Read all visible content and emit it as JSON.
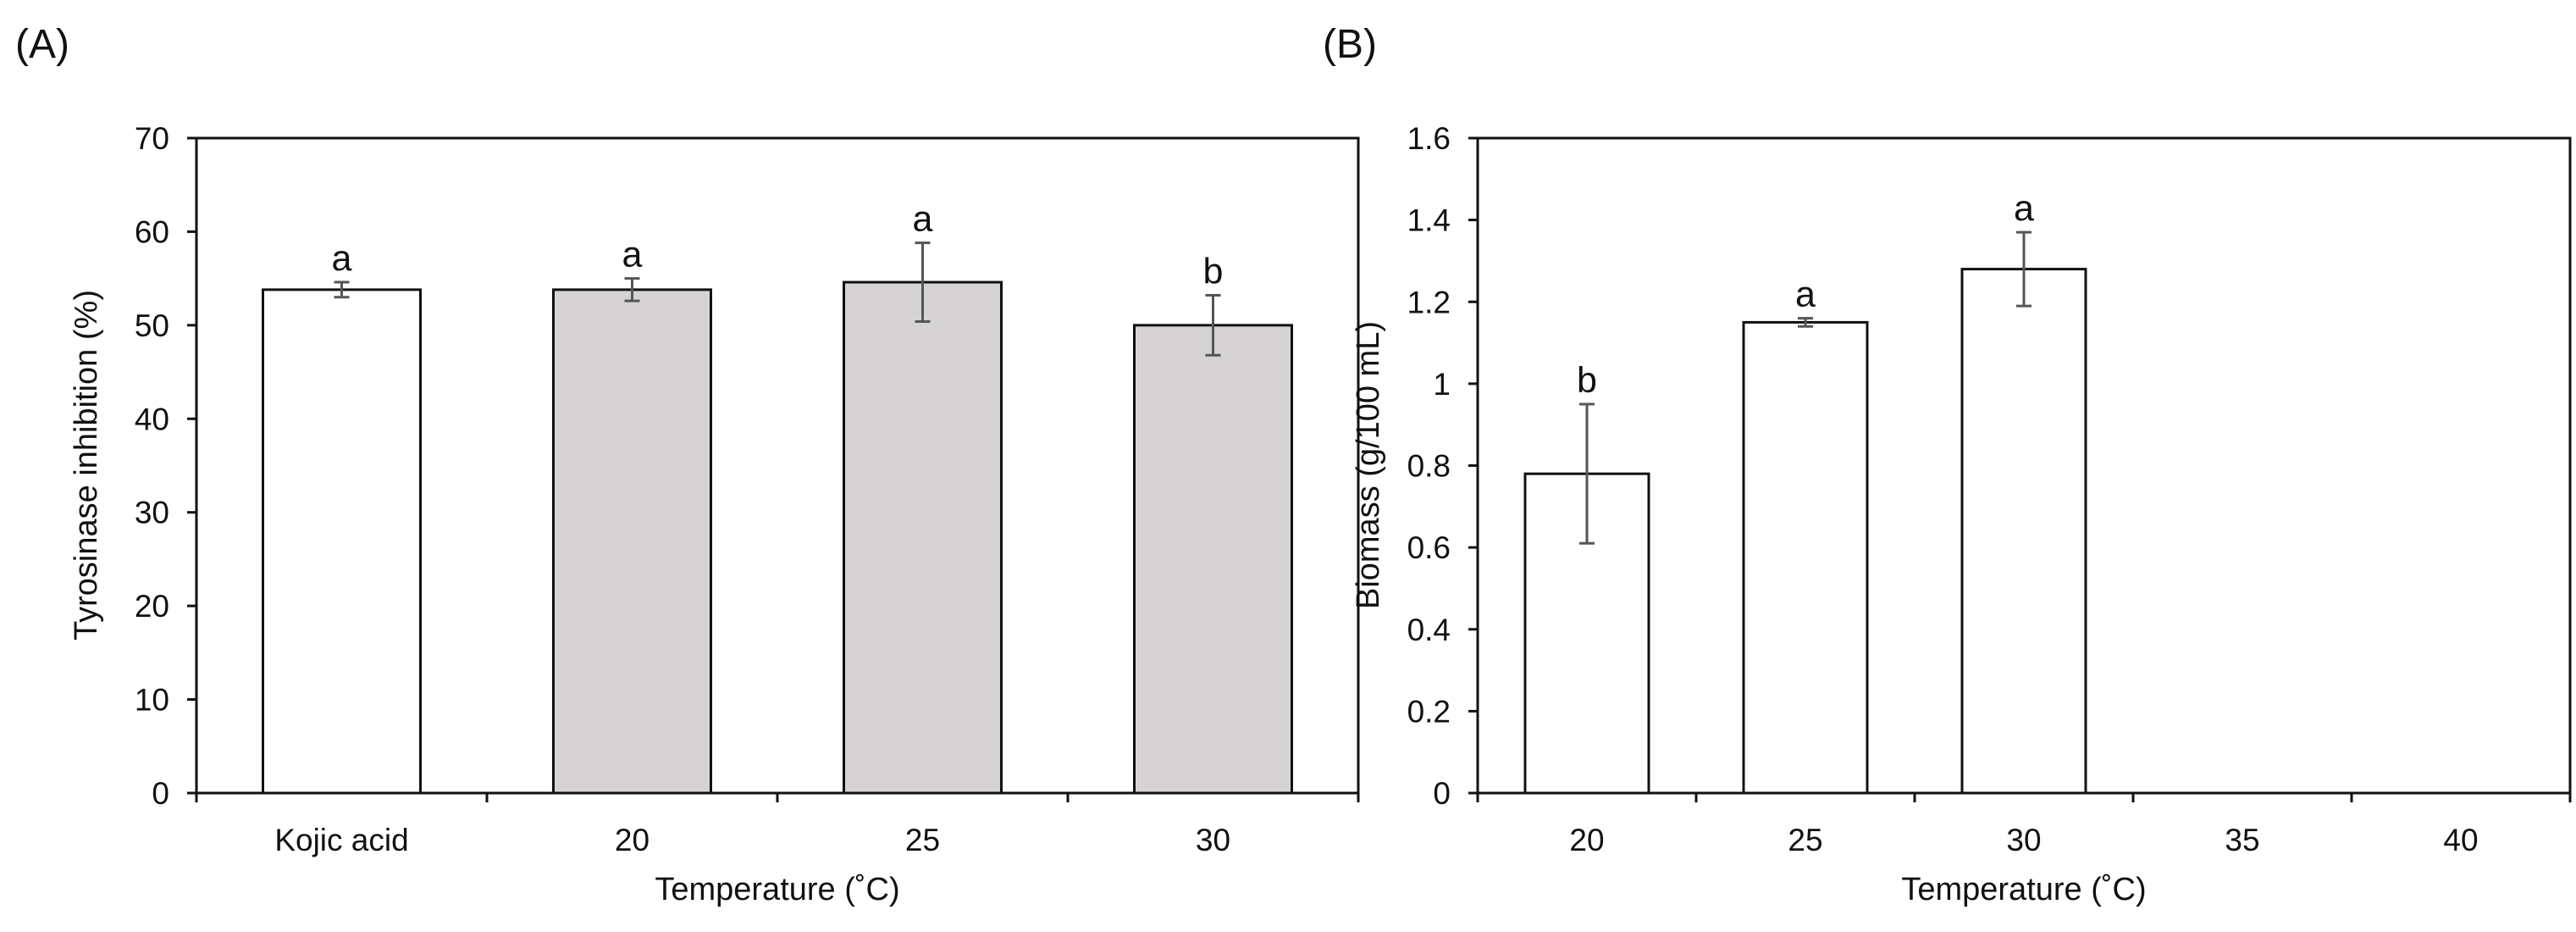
{
  "chart_data": [
    {
      "type": "bar",
      "panel_label": "(A)",
      "categories": [
        "Kojic acid",
        "20",
        "25",
        "30"
      ],
      "values": [
        53.8,
        53.8,
        54.6,
        50.0
      ],
      "errors": [
        0.8,
        1.2,
        4.2,
        3.2
      ],
      "significance": [
        "a",
        "a",
        "a",
        "b"
      ],
      "bar_colors": [
        "#ffffff",
        "#d6d3d4",
        "#d6d3d4",
        "#d6d3d4"
      ],
      "xlabel": "Temperature (˚C)",
      "ylabel": "Tyrosinase inhibition (%)",
      "ylim": [
        0,
        70
      ],
      "yticks": [
        "0",
        "10",
        "20",
        "30",
        "40",
        "50",
        "60",
        "70"
      ],
      "grid": false,
      "legend": "none"
    },
    {
      "type": "bar",
      "panel_label": "(B)",
      "categories": [
        "20",
        "25",
        "30",
        "35",
        "40"
      ],
      "values": [
        0.78,
        1.15,
        1.28,
        null,
        null
      ],
      "errors": [
        0.17,
        0.01,
        0.09,
        null,
        null
      ],
      "significance": [
        "b",
        "a",
        "a",
        "",
        ""
      ],
      "bar_colors": [
        "#ffffff",
        "#ffffff",
        "#ffffff",
        "#ffffff",
        "#ffffff"
      ],
      "xlabel": "Temperature (˚C)",
      "ylabel": "Biomass (g/100 mL)",
      "ylim": [
        0,
        1.6
      ],
      "yticks": [
        "0",
        "0.2",
        "0.4",
        "0.6",
        "0.8",
        "1",
        "1.2",
        "1.4",
        "1.6"
      ],
      "grid": false,
      "legend": "none"
    }
  ],
  "colors": {
    "axis": "#111111",
    "bar_edge": "#111111",
    "error_bar": "#555555"
  }
}
